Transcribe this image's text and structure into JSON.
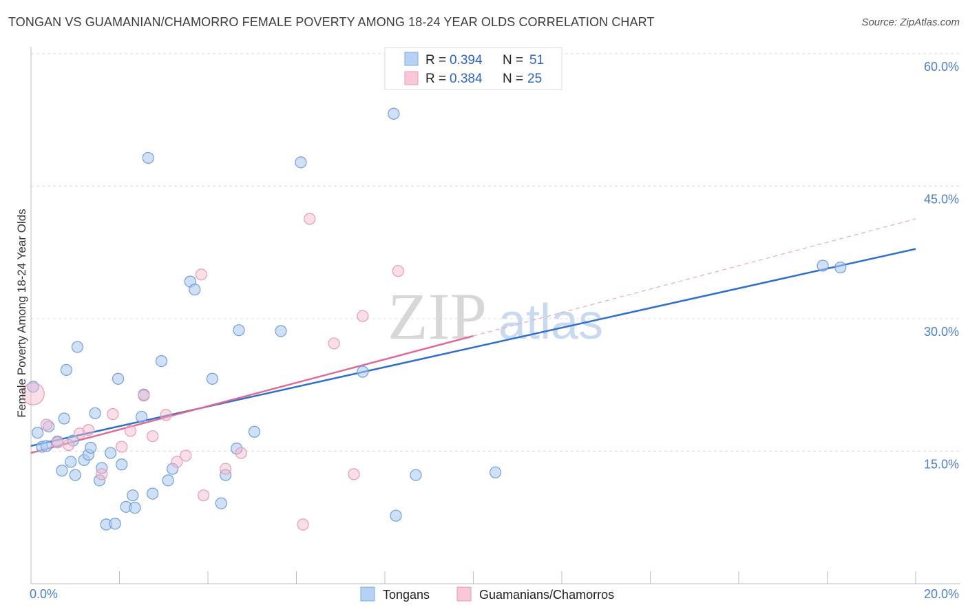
{
  "header": {
    "title": "TONGAN VS GUAMANIAN/CHAMORRO FEMALE POVERTY AMONG 18-24 YEAR OLDS CORRELATION CHART",
    "source": "Source: ZipAtlas.com"
  },
  "legend": {
    "r_label": "R =",
    "n_label": "N =",
    "series": [
      {
        "name": "Tongans",
        "r": "0.394",
        "n": "51"
      },
      {
        "name": "Guamanians/Chamorros",
        "r": "0.384",
        "n": "25"
      }
    ]
  },
  "watermark": {
    "zip": "ZIP",
    "atlas": "atlas"
  },
  "chart_data": {
    "type": "scatter",
    "title": "TONGAN VS GUAMANIAN/CHAMORRO FEMALE POVERTY AMONG 18-24 YEAR OLDS CORRELATION CHART",
    "xlabel": "",
    "ylabel": "Female Poverty Among 18-24 Year Olds",
    "xlim": [
      0,
      20
    ],
    "ylim": [
      0,
      60
    ],
    "x_tick_labels": [
      "0.0%",
      "20.0%"
    ],
    "y_ticks": [
      15,
      30,
      45,
      60
    ],
    "y_tick_labels": [
      "15.0%",
      "30.0%",
      "45.0%",
      "60.0%"
    ],
    "grid": true,
    "colors": {
      "tongans": "#a9c8f0",
      "tongans_line": "#2e6fcc",
      "guam": "#f6b7ca",
      "guam_line": "#e06a95"
    },
    "series": [
      {
        "name": "Tongans",
        "r": 0.394,
        "n": 51,
        "trend": {
          "x": [
            0,
            20
          ],
          "y": [
            15.6,
            37.9
          ]
        },
        "points": [
          [
            0.05,
            22.3,
            8
          ],
          [
            0.15,
            17.1,
            8
          ],
          [
            0.25,
            15.5,
            8
          ],
          [
            0.35,
            15.6,
            8
          ],
          [
            0.4,
            17.8,
            8
          ],
          [
            0.6,
            16.1,
            8
          ],
          [
            0.7,
            12.8,
            8
          ],
          [
            0.75,
            18.7,
            8
          ],
          [
            0.8,
            24.2,
            8
          ],
          [
            0.9,
            13.8,
            8
          ],
          [
            1.0,
            12.3,
            8
          ],
          [
            1.05,
            26.8,
            8
          ],
          [
            1.2,
            14.0,
            8
          ],
          [
            1.3,
            14.6,
            8
          ],
          [
            1.35,
            15.4,
            8
          ],
          [
            1.45,
            19.3,
            8
          ],
          [
            1.55,
            11.7,
            8
          ],
          [
            1.6,
            13.1,
            8
          ],
          [
            1.7,
            6.7,
            8
          ],
          [
            1.8,
            14.8,
            8
          ],
          [
            1.9,
            6.8,
            8
          ],
          [
            1.97,
            23.2,
            8
          ],
          [
            2.05,
            13.5,
            8
          ],
          [
            2.15,
            8.7,
            8
          ],
          [
            2.3,
            10.0,
            8
          ],
          [
            2.35,
            8.6,
            8
          ],
          [
            2.5,
            18.9,
            8
          ],
          [
            2.55,
            21.4,
            8
          ],
          [
            2.65,
            48.2,
            8
          ],
          [
            2.75,
            10.2,
            8
          ],
          [
            2.95,
            25.2,
            8
          ],
          [
            3.1,
            11.7,
            8
          ],
          [
            3.2,
            13.0,
            8
          ],
          [
            3.6,
            34.2,
            8
          ],
          [
            3.7,
            33.3,
            8
          ],
          [
            4.1,
            23.2,
            8
          ],
          [
            4.3,
            9.1,
            8
          ],
          [
            4.4,
            12.3,
            8
          ],
          [
            4.65,
            15.3,
            8
          ],
          [
            4.7,
            28.7,
            8
          ],
          [
            5.05,
            17.2,
            8
          ],
          [
            5.65,
            28.6,
            8
          ],
          [
            6.1,
            47.7,
            8
          ],
          [
            7.5,
            24.0,
            8
          ],
          [
            8.2,
            53.2,
            8
          ],
          [
            8.25,
            7.7,
            8
          ],
          [
            8.7,
            12.3,
            8
          ],
          [
            10.5,
            12.6,
            8
          ],
          [
            17.9,
            36.0,
            8
          ],
          [
            18.3,
            35.8,
            8
          ],
          [
            0.95,
            16.2,
            8
          ]
        ]
      },
      {
        "name": "Guamanians/Chamorros",
        "r": 0.384,
        "n": 25,
        "trend": {
          "x": [
            0,
            20
          ],
          "y": [
            14.8,
            41.3
          ]
        },
        "trend_solid_until": 10,
        "points": [
          [
            0.05,
            21.5,
            16
          ],
          [
            0.35,
            18.0,
            8
          ],
          [
            0.6,
            16.0,
            8
          ],
          [
            0.85,
            15.7,
            8
          ],
          [
            1.1,
            17.0,
            8
          ],
          [
            1.3,
            17.4,
            8
          ],
          [
            1.6,
            12.4,
            8
          ],
          [
            1.85,
            19.2,
            8
          ],
          [
            2.05,
            15.5,
            8
          ],
          [
            2.25,
            17.3,
            8
          ],
          [
            2.55,
            21.3,
            8
          ],
          [
            2.75,
            16.7,
            8
          ],
          [
            3.05,
            19.1,
            8
          ],
          [
            3.3,
            13.8,
            8
          ],
          [
            3.5,
            14.5,
            8
          ],
          [
            3.85,
            35.0,
            8
          ],
          [
            3.9,
            10.0,
            8
          ],
          [
            4.4,
            13.0,
            8
          ],
          [
            4.75,
            14.8,
            8
          ],
          [
            6.15,
            6.7,
            8
          ],
          [
            6.3,
            41.3,
            8
          ],
          [
            6.85,
            27.2,
            8
          ],
          [
            7.3,
            12.4,
            8
          ],
          [
            7.5,
            30.3,
            8
          ],
          [
            8.3,
            35.4,
            8
          ]
        ]
      }
    ]
  }
}
